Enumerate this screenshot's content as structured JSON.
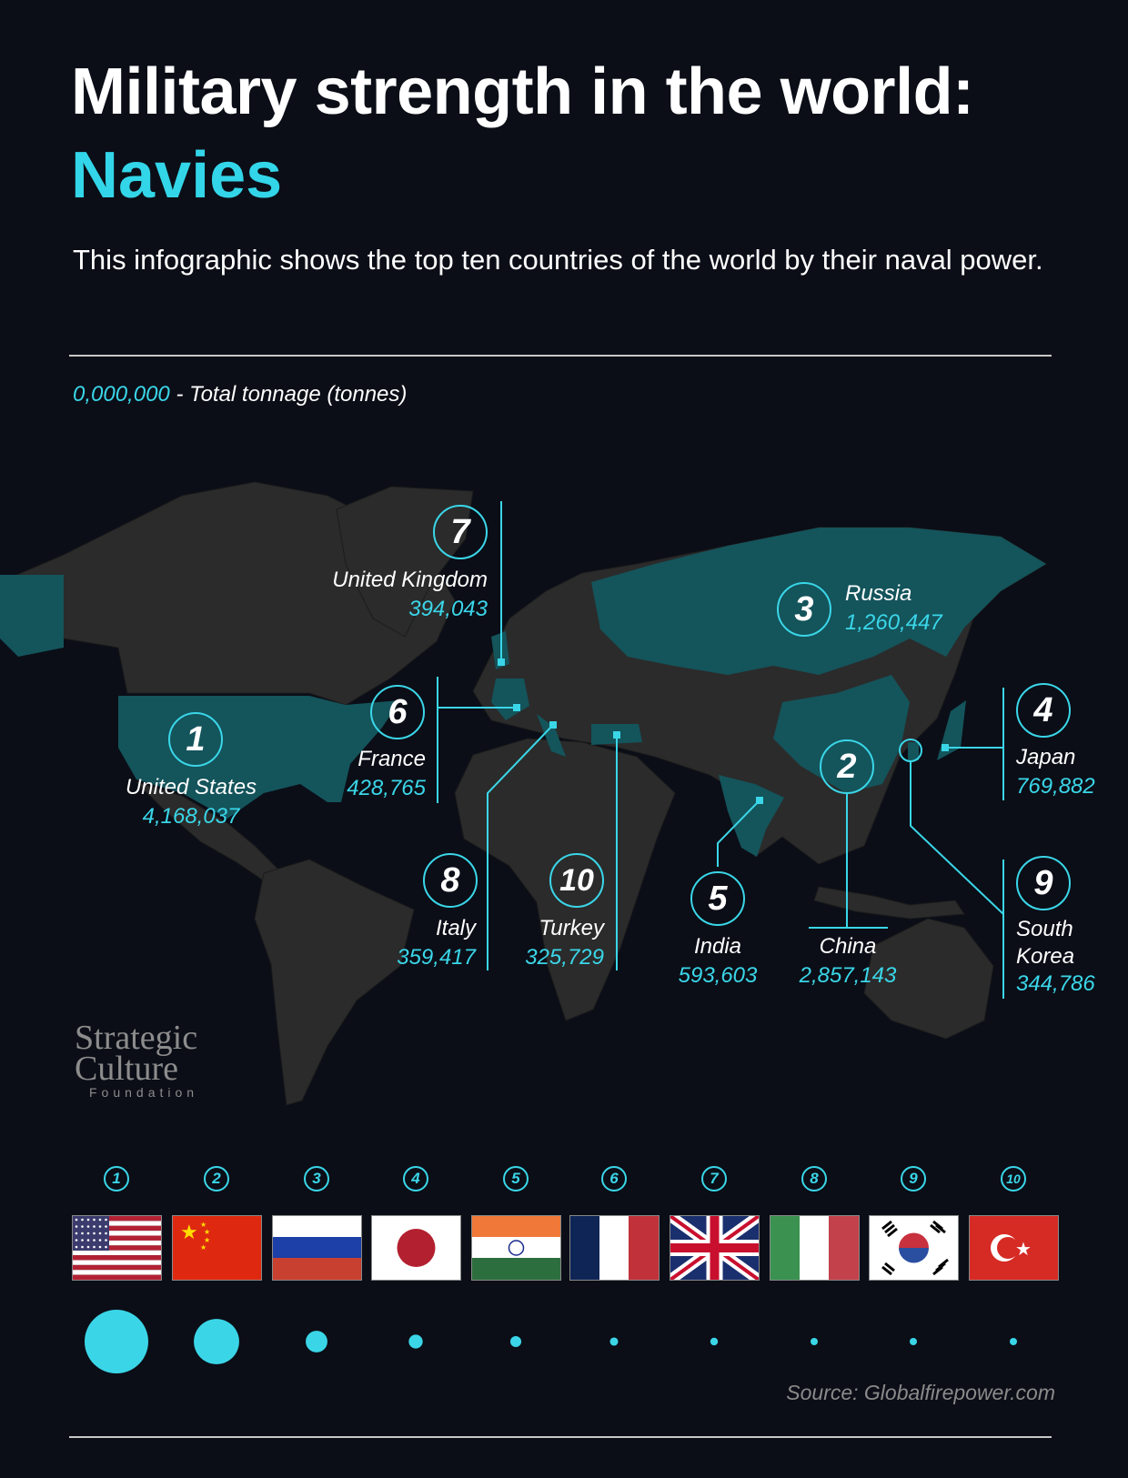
{
  "header": {
    "title": "Military strength in the world:",
    "title_highlight": "Navies",
    "subtitle": "This infographic shows the top ten countries of the world by their naval power."
  },
  "legend": {
    "sample_value": "0,000,000",
    "description": "- Total tonnage (tonnes)"
  },
  "colors": {
    "background": "#0b0e17",
    "accent": "#3ad6e8",
    "land": "#2b2b2b",
    "highlight_land": "#14545b"
  },
  "markers": [
    {
      "rank": "1",
      "country": "United States",
      "value": "4,168,037"
    },
    {
      "rank": "2",
      "country": "China",
      "value": "2,857,143"
    },
    {
      "rank": "3",
      "country": "Russia",
      "value": "1,260,447"
    },
    {
      "rank": "4",
      "country": "Japan",
      "value": "769,882"
    },
    {
      "rank": "5",
      "country": "India",
      "value": "593,603"
    },
    {
      "rank": "6",
      "country": "France",
      "value": "428,765"
    },
    {
      "rank": "7",
      "country": "United Kingdom",
      "value": "394,043"
    },
    {
      "rank": "8",
      "country": "Italy",
      "value": "359,417"
    },
    {
      "rank": "9",
      "country": "South Korea",
      "country_line1": "South",
      "country_line2": "Korea",
      "value": "344,786"
    },
    {
      "rank": "10",
      "country": "Turkey",
      "value": "325,729"
    }
  ],
  "watermark": {
    "line1": "Strategic",
    "line2": "Culture",
    "line3": "Foundation"
  },
  "bottom": {
    "ranks": [
      "1",
      "2",
      "3",
      "4",
      "5",
      "6",
      "7",
      "8",
      "9",
      "10"
    ],
    "flags": [
      "us-flag-icon",
      "china-flag-icon",
      "russia-flag-icon",
      "japan-flag-icon",
      "india-flag-icon",
      "france-flag-icon",
      "uk-flag-icon",
      "italy-flag-icon",
      "south-korea-flag-icon",
      "turkey-flag-icon"
    ]
  },
  "chart_data": {
    "type": "bubble",
    "categories": [
      "United States",
      "China",
      "Russia",
      "Japan",
      "India",
      "France",
      "United Kingdom",
      "Italy",
      "South Korea",
      "Turkey"
    ],
    "values": [
      4168037,
      2857143,
      1260447,
      769882,
      593603,
      428765,
      394043,
      359417,
      344786,
      325729
    ],
    "unit": "tonnes"
  },
  "source": "Source: Globalfirepower.com"
}
